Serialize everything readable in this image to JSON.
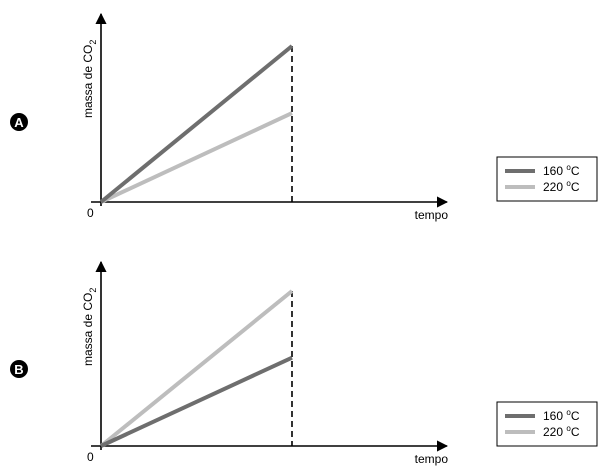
{
  "chart_data": [
    {
      "type": "line",
      "panel_label": "A",
      "ylabel_main": "massa de CO",
      "ylabel_sub": "2",
      "xlabel": "tempo",
      "origin_label": "0",
      "vline_x": 1,
      "xlim": [
        0,
        1.6
      ],
      "ylim": [
        0,
        1.2
      ],
      "series": [
        {
          "name": "160 °C",
          "color": "#6e6e6e",
          "x": [
            0,
            1
          ],
          "y": [
            0,
            1.0
          ]
        },
        {
          "name": "220 °C",
          "color": "#bdbdbd",
          "x": [
            0,
            1
          ],
          "y": [
            0,
            0.57
          ]
        }
      ],
      "legend": [
        {
          "label": "160 ",
          "unit_sup": "o",
          "unit": "C",
          "color": "#6e6e6e"
        },
        {
          "label": "220 ",
          "unit_sup": "o",
          "unit": "C",
          "color": "#bdbdbd"
        }
      ]
    },
    {
      "type": "line",
      "panel_label": "B",
      "ylabel_main": "massa de CO",
      "ylabel_sub": "2",
      "xlabel": "tempo",
      "origin_label": "0",
      "vline_x": 1,
      "xlim": [
        0,
        1.6
      ],
      "ylim": [
        0,
        1.2
      ],
      "series": [
        {
          "name": "160 °C",
          "color": "#6e6e6e",
          "x": [
            0,
            1
          ],
          "y": [
            0,
            0.57
          ]
        },
        {
          "name": "220 °C",
          "color": "#bdbdbd",
          "x": [
            0,
            1
          ],
          "y": [
            0,
            1.0
          ]
        }
      ],
      "legend": [
        {
          "label": "160 ",
          "unit_sup": "o",
          "unit": "C",
          "color": "#6e6e6e"
        },
        {
          "label": "220 ",
          "unit_sup": "o",
          "unit": "C",
          "color": "#bdbdbd"
        }
      ]
    }
  ]
}
